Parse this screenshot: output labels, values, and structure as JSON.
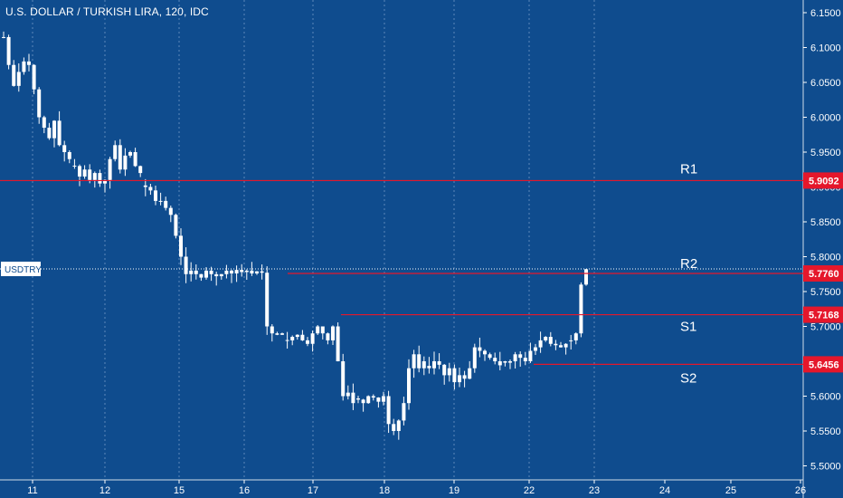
{
  "header": {
    "title": "U.S. DOLLAR / TURKISH LIRA, 120, IDC"
  },
  "colors": {
    "background": "#0f4c8e",
    "candle": "#ffffff",
    "level_line": "#e5172b",
    "level_label_bg": "#e5172b",
    "grid": "#7da3cf"
  },
  "chart_data": {
    "type": "candlestick",
    "symbol": "USDTRY",
    "title": "U.S. DOLLAR / TURKISH LIRA, 120, IDC",
    "ylim": [
      5.475,
      6.17
    ],
    "y_ticks": [
      "6.1500",
      "6.1000",
      "6.0500",
      "6.0000",
      "5.9500",
      "5.9000",
      "5.8500",
      "5.8000",
      "5.7500",
      "5.7000",
      "5.6500",
      "5.6000",
      "5.5500",
      "5.5000"
    ],
    "x_ticks": [
      "11",
      "12",
      "15",
      "16",
      "17",
      "18",
      "19",
      "22",
      "23",
      "24",
      "25",
      "26"
    ],
    "last_price": {
      "label": "USDTRY",
      "value": "5.7825"
    },
    "levels": [
      {
        "name": "R1",
        "value": 5.9092,
        "label": "5.9092"
      },
      {
        "name": "R2",
        "value": 5.776,
        "label": "5.7760"
      },
      {
        "name": "S1",
        "value": 5.7168,
        "label": "5.7168"
      },
      {
        "name": "S2",
        "value": 5.6456,
        "label": "5.6456"
      }
    ],
    "series": [
      {
        "day": "11",
        "anchors": [
          6.115,
          6.075,
          6.045,
          6.065,
          6.08,
          6.075,
          6.04,
          6.0,
          5.985,
          5.97,
          5.995,
          5.96,
          5.95,
          5.94
        ]
      },
      {
        "day": "12",
        "anchors": [
          5.93,
          5.915,
          5.925,
          5.91,
          5.92,
          5.905,
          5.91,
          5.94,
          5.96,
          5.925,
          5.945,
          5.95,
          5.93,
          5.92
        ]
      },
      {
        "day": "15",
        "anchors": [
          5.9,
          5.895,
          5.88,
          5.88,
          5.87,
          5.86,
          5.83,
          5.8,
          5.775,
          5.78,
          5.775,
          5.77,
          5.78,
          5.775
        ]
      },
      {
        "day": "16",
        "anchors": [
          5.772,
          5.775,
          5.78,
          5.776,
          5.781,
          5.778,
          5.78,
          5.776,
          5.779,
          5.777,
          5.7,
          5.69,
          5.688,
          5.69
        ]
      },
      {
        "day": "17",
        "anchors": [
          5.68,
          5.685,
          5.688,
          5.68,
          5.675,
          5.69,
          5.7,
          5.69,
          5.68,
          5.7,
          5.65,
          5.6,
          5.605,
          5.59
        ]
      },
      {
        "day": "18",
        "anchors": [
          5.595,
          5.59,
          5.6,
          5.598,
          5.592,
          5.6,
          5.56,
          5.55,
          5.565,
          5.59,
          5.64,
          5.66,
          5.64,
          5.65
        ]
      },
      {
        "day": "19",
        "anchors": [
          5.64,
          5.65,
          5.645,
          5.63,
          5.64,
          5.62,
          5.63,
          5.625,
          5.64,
          5.67,
          5.665,
          5.66,
          5.655,
          5.65
        ]
      },
      {
        "day": "22",
        "anchors": [
          5.65,
          5.648,
          5.65,
          5.66,
          5.655,
          5.65,
          5.665,
          5.67,
          5.68,
          5.685,
          5.675,
          5.673,
          5.67,
          5.675
        ]
      },
      {
        "day": "23",
        "anchors": [
          5.68,
          5.69,
          5.76,
          5.782
        ]
      }
    ]
  }
}
